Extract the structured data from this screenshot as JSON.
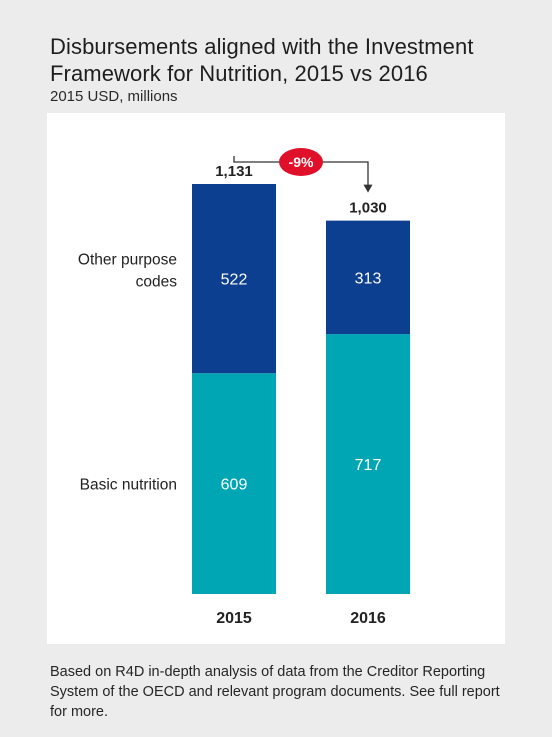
{
  "title_line1": "Disbursements aligned with the Investment",
  "title_line2": "Framework for Nutrition, 2015 vs 2016",
  "subtitle": "2015 USD, millions",
  "footnote": "Based on R4D in-depth analysis of data from the Creditor Reporting System of the OECD and relevant program documents. See full report for more.",
  "colors": {
    "other": "#0c3f8f",
    "basic": "#00a6b4",
    "badge": "#e0102a"
  },
  "chart_data": {
    "type": "bar",
    "stacked": true,
    "title": "Disbursements aligned with the Investment Framework for Nutrition, 2015 vs 2016",
    "subtitle": "2015 USD, millions",
    "categories": [
      "2015",
      "2016"
    ],
    "series": [
      {
        "name": "Basic nutrition",
        "values": [
          609,
          717
        ]
      },
      {
        "name": "Other purpose codes",
        "values": [
          522,
          313
        ]
      }
    ],
    "totals": [
      1131,
      1030
    ],
    "total_labels": [
      "1,131",
      "1,030"
    ],
    "segment_labels": [
      [
        "609",
        "522"
      ],
      [
        "717",
        "313"
      ]
    ],
    "series_labels": [
      [
        "Other purpose",
        "codes"
      ],
      [
        "Basic nutrition"
      ]
    ],
    "change_label": "-9%",
    "ylim": [
      0,
      1131
    ],
    "grid": false,
    "legend": "left-inline"
  }
}
